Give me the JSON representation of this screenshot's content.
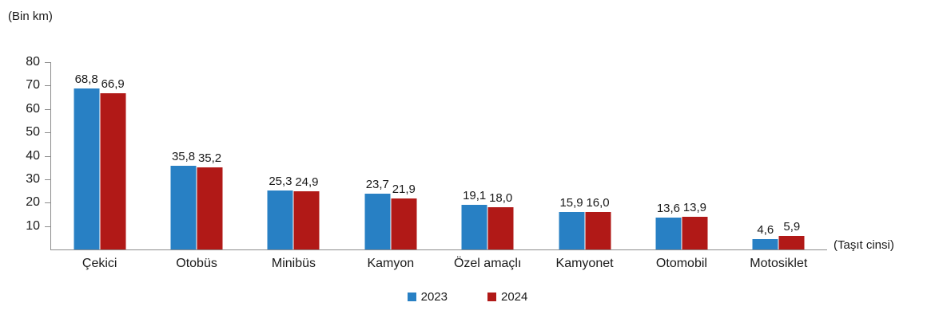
{
  "chart_data": {
    "type": "bar",
    "title": "",
    "ylabel": "(Bin km)",
    "xlabel": "(Taşıt cinsi)",
    "categories": [
      "Çekici",
      "Otobüs",
      "Minibüs",
      "Kamyon",
      "Özel amaçlı",
      "Kamyonet",
      "Otomobil",
      "Motosiklet"
    ],
    "series": [
      {
        "name": "2023",
        "color": "#2880C4",
        "values": [
          68.8,
          35.8,
          25.3,
          23.7,
          19.1,
          15.9,
          13.6,
          4.6
        ]
      },
      {
        "name": "2024",
        "color": "#B11917",
        "values": [
          66.9,
          35.2,
          24.9,
          21.9,
          18.0,
          16.0,
          13.9,
          5.9
        ]
      }
    ],
    "value_labels": [
      [
        "68,8",
        "35,8",
        "25,3",
        "23,7",
        "19,1",
        "15,9",
        "13,6",
        "4,6"
      ],
      [
        "66,9",
        "35,2",
        "24,9",
        "21,9",
        "18,0",
        "16,0",
        "13,9",
        "5,9"
      ]
    ],
    "ylim": [
      0,
      80
    ],
    "yticks": [
      10,
      20,
      30,
      40,
      50,
      60,
      70,
      80
    ],
    "grid": false,
    "decimal_separator": ",",
    "legend_position": "bottom"
  }
}
